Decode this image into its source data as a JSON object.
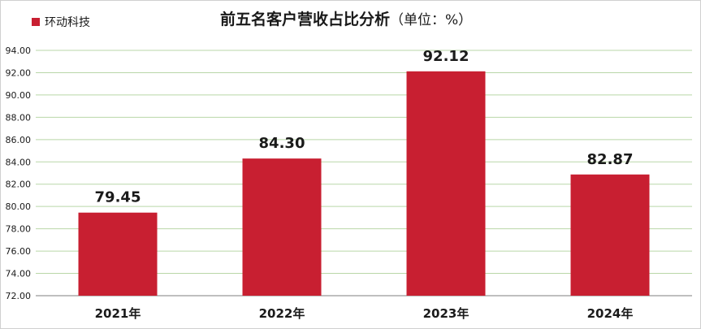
{
  "chart_data": {
    "type": "bar",
    "title": "前五名客户营收占比分析",
    "title_unit": "（单位：%）",
    "categories": [
      "2021年",
      "2022年",
      "2023年",
      "2024年"
    ],
    "series": [
      {
        "name": "环动科技",
        "values": [
          79.45,
          84.3,
          92.12,
          82.87
        ]
      }
    ],
    "data_labels": [
      "79.45",
      "84.30",
      "92.12",
      "82.87"
    ],
    "ylim": [
      72,
      94
    ],
    "yticks": [
      "72.00",
      "74.00",
      "76.00",
      "78.00",
      "80.00",
      "82.00",
      "84.00",
      "86.00",
      "88.00",
      "90.00",
      "92.00",
      "94.00"
    ],
    "xlabel": "",
    "ylabel": "",
    "grid": true,
    "legend_position": "top-left",
    "colors": {
      "bar": "#C81F31",
      "grid": "#B9D7A8",
      "axis": "#7f7f7f"
    }
  }
}
